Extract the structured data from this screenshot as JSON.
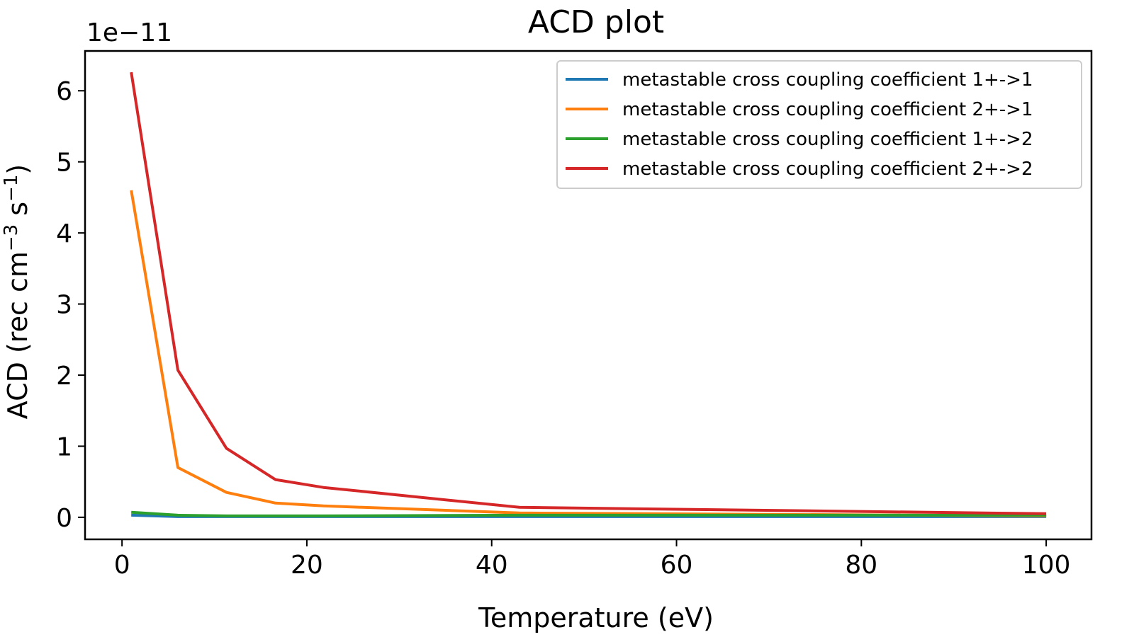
{
  "chart_data": {
    "type": "line",
    "title": "ACD plot",
    "xlabel": "Temperature (eV)",
    "ylabel_base": "ACD (rec cm",
    "ylabel_sup1": "−3",
    "ylabel_mid": " s",
    "ylabel_sup2": "−1",
    "ylabel_end": ")",
    "y_offset_label": "1e−11",
    "xlim": [
      -4.0,
      104.9
    ],
    "ylim": [
      -0.31,
      6.56
    ],
    "x_ticks": [
      0,
      20,
      40,
      60,
      80,
      100
    ],
    "y_ticks": [
      0,
      1,
      2,
      3,
      4,
      5,
      6
    ],
    "grid": false,
    "legend_position": "top-right",
    "x": [
      1.0,
      6.05,
      11.3,
      16.6,
      21.8,
      43.0,
      100.0
    ],
    "series": [
      {
        "name": "metastable cross coupling coefficient 1+->1",
        "color": "#1f77b4",
        "values": [
          0.03,
          0.01,
          0.01,
          0.01,
          0.01,
          0.01,
          0.01
        ]
      },
      {
        "name": "metastable cross coupling coefficient 2+->1",
        "color": "#ff7f0e",
        "values": [
          4.6,
          0.7,
          0.35,
          0.2,
          0.16,
          0.06,
          0.02
        ]
      },
      {
        "name": "metastable cross coupling coefficient 1+->2",
        "color": "#2ca02c",
        "values": [
          0.07,
          0.03,
          0.02,
          0.02,
          0.02,
          0.03,
          0.03
        ]
      },
      {
        "name": "metastable cross coupling coefficient 2+->2",
        "color": "#d62728",
        "values": [
          6.26,
          2.07,
          0.97,
          0.53,
          0.42,
          0.14,
          0.05
        ]
      }
    ]
  }
}
